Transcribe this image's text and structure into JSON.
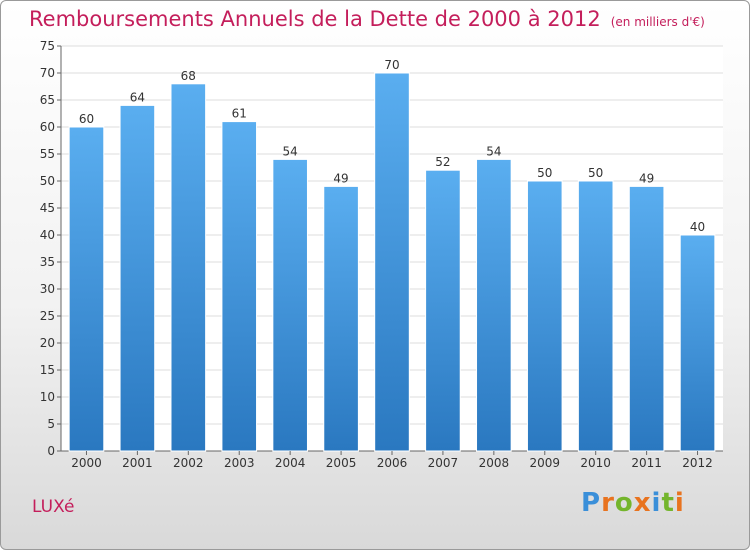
{
  "chart_data": {
    "type": "bar",
    "title": "Remboursements Annuels de la Dette de 2000 à 2012",
    "unit": "(en milliers d'€)",
    "categories": [
      "2000",
      "2001",
      "2002",
      "2003",
      "2004",
      "2005",
      "2006",
      "2007",
      "2008",
      "2009",
      "2010",
      "2011",
      "2012"
    ],
    "values": [
      60,
      64,
      68,
      61,
      54,
      49,
      70,
      52,
      54,
      50,
      50,
      49,
      40
    ],
    "ylim": [
      0,
      75
    ],
    "yticks": [
      0,
      5,
      10,
      15,
      20,
      25,
      30,
      35,
      40,
      45,
      50,
      55,
      60,
      65,
      70,
      75
    ],
    "grid": true,
    "bar_color": "#4f9fe0",
    "data_labels": true
  },
  "location": "LUXé",
  "logo": {
    "letters": [
      "P",
      "r",
      "o",
      "x",
      "i",
      "t",
      "i"
    ],
    "colors": [
      "#3a8fd9",
      "#e8731f",
      "#74b52c",
      "#e8731f",
      "#3a8fd9",
      "#74b52c",
      "#e8731f"
    ]
  },
  "colors": {
    "title": "#c41e5b",
    "grid": "#dddddd",
    "axis": "#666666"
  }
}
